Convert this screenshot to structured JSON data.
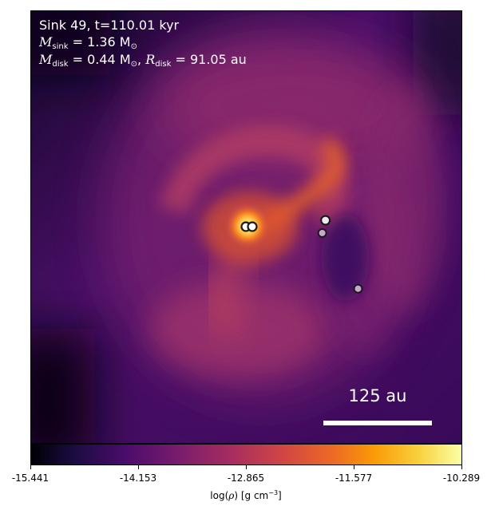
{
  "annotations": {
    "line1": "Sink 49, t=110.01 kyr",
    "sink_mass_label": "M",
    "sink_mass_sub": "sink",
    "sink_mass_value": " = 1.36 M",
    "sink_mass_unit_sub": "⊙",
    "disk_mass_label": "M",
    "disk_mass_sub": "disk",
    "disk_mass_value": " = 0.44 M",
    "disk_mass_unit_sub": "⊙",
    "disk_radius_sep": ", ",
    "disk_radius_label": "R",
    "disk_radius_sub": "disk",
    "disk_radius_value": " = 91.05 au"
  },
  "scale_bar": {
    "label": "125 au"
  },
  "colorbar": {
    "ticks": [
      "-15.441",
      "-14.153",
      "-12.865",
      "-11.577",
      "-10.289"
    ],
    "label_prefix": "log(",
    "label_rho": "ρ",
    "label_suffix": ") [g cm",
    "label_exp": "−3",
    "label_end": "]"
  },
  "colors": {
    "background": "#4a0f68",
    "core": "#ffd24a",
    "sink_fill_white": "#ffffff",
    "sink_fill_grey": "#c8a9c9",
    "sink_edge": "#1a1a1a"
  }
}
